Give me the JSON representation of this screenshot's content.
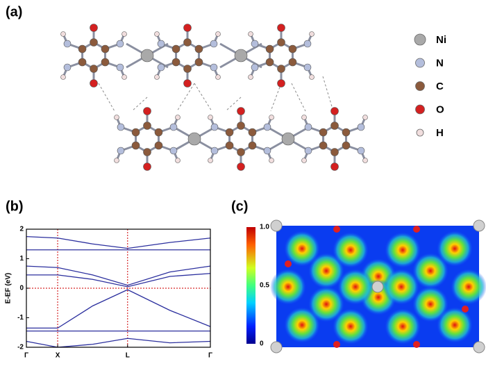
{
  "panel_labels": {
    "a": "(a)",
    "b": "(b)",
    "c": "(c)"
  },
  "legend": [
    {
      "label": "Ni",
      "color": "#a9a9a9"
    },
    {
      "label": "N",
      "color": "#b4bedc"
    },
    {
      "label": "C",
      "color": "#8b5a3c"
    },
    {
      "label": "O",
      "color": "#d42020"
    },
    {
      "label": "H",
      "color": "#f1dede"
    }
  ],
  "chart_data": {
    "type": "line",
    "y_label": "E-EF (eV)",
    "x": [
      0,
      0.17,
      0.36,
      0.55,
      0.78,
      1
    ],
    "xlim": [
      0,
      1
    ],
    "xticks": [
      {
        "value": 0,
        "label": "Γ"
      },
      {
        "value": 0.17,
        "label": "X"
      },
      {
        "value": 0.55,
        "label": "L"
      },
      {
        "value": 1,
        "label": "Γ"
      }
    ],
    "ylim": [
      -2,
      2
    ],
    "yticks": [
      -2,
      -1,
      0,
      1,
      2
    ],
    "ref_lines": {
      "x": [
        0.17,
        0.55
      ],
      "y": [
        0
      ],
      "color": "#d62728"
    },
    "series": [
      {
        "color": "#2b2f9e",
        "values": [
          1.75,
          1.7,
          1.5,
          1.35,
          1.55,
          1.7
        ]
      },
      {
        "color": "#2b2f9e",
        "values": [
          1.3,
          1.3,
          1.3,
          1.3,
          1.3,
          1.3
        ]
      },
      {
        "color": "#2b2f9e",
        "values": [
          0.75,
          0.7,
          0.45,
          0.1,
          0.55,
          0.75
        ]
      },
      {
        "color": "#2b2f9e",
        "values": [
          0.45,
          0.45,
          0.3,
          0.05,
          0.4,
          0.5
        ]
      },
      {
        "color": "#2b2f9e",
        "values": [
          -1.35,
          -1.35,
          -0.6,
          -0.05,
          -0.75,
          -1.3
        ]
      },
      {
        "color": "#2b2f9e",
        "values": [
          -1.45,
          -1.45,
          -1.45,
          -1.45,
          -1.45,
          -1.45
        ]
      },
      {
        "color": "#2b2f9e",
        "values": [
          -1.8,
          -2,
          -1.9,
          -1.7,
          -1.85,
          -1.8
        ]
      }
    ]
  },
  "colorbar": {
    "lim": [
      0,
      1
    ],
    "ticks": [
      0,
      0.5,
      {
        "value": 1,
        "label": "1.0"
      }
    ]
  }
}
